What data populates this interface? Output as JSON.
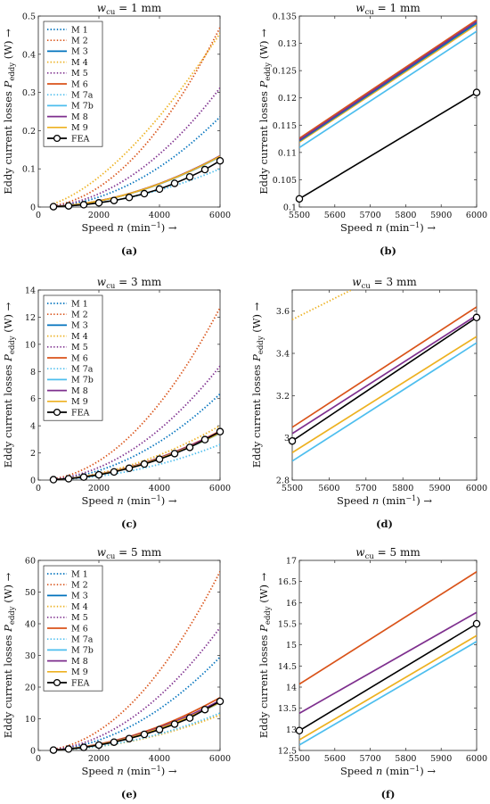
{
  "page": {
    "ylabel_left": "Eddy current losses P",
    "ylabel_sub": "eddy",
    "ylabel_unit": " (W)",
    "xlabel": "Speed n (min",
    "xlabel_sup": "−1",
    "xlabel_close": ")",
    "arrow": "→"
  },
  "colors": {
    "M 1": "#0072BD",
    "M 2": "#D95319",
    "M 3": "#0072BD",
    "M 4": "#EDB120",
    "M 5": "#7E2F8E",
    "M 6": "#D95319",
    "M 7a": "#4DBEEE",
    "M 7b": "#4DBEEE",
    "M 8": "#7E2F8E",
    "M 9": "#EDB120",
    "FEA": "#000000"
  },
  "styles": {
    "M 1": "dot",
    "M 2": "dot",
    "M 3": "solid",
    "M 4": "dot",
    "M 5": "dot",
    "M 6": "solid",
    "M 7a": "dot",
    "M 7b": "solid",
    "M 8": "solid",
    "M 9": "solid",
    "FEA": "circle"
  },
  "chart_data": [
    {
      "type": "line",
      "caption": "(a)",
      "title_main": "w",
      "title_sub": "cu",
      "title_rest": " = 1 mm",
      "xlim": [
        0,
        6000
      ],
      "ylim": [
        0,
        0.5
      ],
      "xticks": [
        0,
        2000,
        4000,
        6000
      ],
      "xtick_labels": [
        "0",
        "2000",
        "4000",
        "6000"
      ],
      "yticks": [
        0,
        0.1,
        0.2,
        0.3,
        0.4,
        0.5
      ],
      "ytick_labels": [
        "0",
        "0.1",
        "0.2",
        "0.3",
        "0.4",
        "0.5"
      ],
      "legend": [
        "M 1",
        "M 2",
        "M 3",
        "M 4",
        "M 5",
        "M 6",
        "M 7a",
        "M 7b",
        "M 8",
        "M 9",
        "FEA"
      ],
      "series": [
        {
          "name": "M 1",
          "x": [
            500,
            6000
          ],
          "y": [
            0.0016,
            0.236
          ],
          "exp": 2
        },
        {
          "name": "M 2",
          "x": [
            500,
            6000
          ],
          "y": [
            0.0032,
            0.47
          ],
          "exp": 2
        },
        {
          "name": "M 3",
          "x": [
            500,
            6000
          ],
          "y": [
            0.0011,
            0.132
          ],
          "exp": 1.93
        },
        {
          "name": "M 4",
          "x": [
            500,
            6000
          ],
          "y": [
            0.0085,
            0.455
          ],
          "exp": 1.6
        },
        {
          "name": "M 5",
          "x": [
            500,
            6000
          ],
          "y": [
            0.0022,
            0.312
          ],
          "exp": 2
        },
        {
          "name": "M 6",
          "x": [
            500,
            6000
          ],
          "y": [
            0.0011,
            0.134
          ],
          "exp": 1.93
        },
        {
          "name": "M 7a",
          "x": [
            500,
            6000
          ],
          "y": [
            0.0007,
            0.1
          ],
          "exp": 2
        },
        {
          "name": "M 7b",
          "x": [
            500,
            6000
          ],
          "y": [
            0.0011,
            0.132
          ],
          "exp": 1.93
        },
        {
          "name": "M 8",
          "x": [
            500,
            6000
          ],
          "y": [
            0.0011,
            0.134
          ],
          "exp": 1.93
        },
        {
          "name": "M 9",
          "x": [
            500,
            6000
          ],
          "y": [
            0.0011,
            0.133
          ],
          "exp": 1.93
        },
        {
          "name": "FEA",
          "x": [
            500,
            1000,
            1500,
            2000,
            2500,
            3000,
            3500,
            4000,
            4500,
            5000,
            5500,
            6000
          ],
          "y": [
            0.001,
            0.003,
            0.006,
            0.011,
            0.017,
            0.025,
            0.035,
            0.047,
            0.062,
            0.079,
            0.098,
            0.121
          ]
        }
      ]
    },
    {
      "type": "line",
      "caption": "(b)",
      "title_main": "w",
      "title_sub": "cu",
      "title_rest": " = 1 mm",
      "xlim": [
        5500,
        6000
      ],
      "ylim": [
        0.1,
        0.135
      ],
      "xticks": [
        5500,
        5600,
        5700,
        5800,
        5900,
        6000
      ],
      "xtick_labels": [
        "5500",
        "5600",
        "5700",
        "5800",
        "5900",
        "6000"
      ],
      "yticks": [
        0.1,
        0.105,
        0.11,
        0.115,
        0.12,
        0.125,
        0.13,
        0.135
      ],
      "ytick_labels": [
        "0.1",
        "0.105",
        "0.11",
        "0.115",
        "0.12",
        "0.125",
        "0.13",
        "0.135"
      ],
      "legend": [],
      "series": [
        {
          "name": "M 7b",
          "x": [
            5500,
            6000
          ],
          "y": [
            0.1109,
            0.1322
          ],
          "exp": 1
        },
        {
          "name": "M 9",
          "x": [
            5500,
            6000
          ],
          "y": [
            0.1119,
            0.1334
          ],
          "exp": 1
        },
        {
          "name": "M 3",
          "x": [
            5500,
            6000
          ],
          "y": [
            0.1121,
            0.1337
          ],
          "exp": 1
        },
        {
          "name": "M 6",
          "x": [
            5500,
            6000
          ],
          "y": [
            0.1126,
            0.1343
          ],
          "exp": 1
        },
        {
          "name": "M 8",
          "x": [
            5500,
            6000
          ],
          "y": [
            0.1123,
            0.134
          ],
          "exp": 1
        },
        {
          "name": "FEA",
          "x": [
            5500,
            6000
          ],
          "y": [
            0.1015,
            0.121
          ]
        }
      ]
    },
    {
      "type": "line",
      "caption": "(c)",
      "title_main": "w",
      "title_sub": "cu",
      "title_rest": " = 3 mm",
      "xlim": [
        0,
        6000
      ],
      "ylim": [
        0,
        14
      ],
      "xticks": [
        0,
        2000,
        4000,
        6000
      ],
      "xtick_labels": [
        "0",
        "2000",
        "4000",
        "6000"
      ],
      "yticks": [
        0,
        2,
        4,
        6,
        8,
        10,
        12,
        14
      ],
      "ytick_labels": [
        "0",
        "2",
        "4",
        "6",
        "8",
        "10",
        "12",
        "14"
      ],
      "legend": [
        "M 1",
        "M 2",
        "M 3",
        "M 4",
        "M 5",
        "M 6",
        "M 7a",
        "M 7b",
        "M 8",
        "M 9",
        "FEA"
      ],
      "series": [
        {
          "name": "M 1",
          "x": [
            500,
            6000
          ],
          "y": [
            0.044,
            6.35
          ],
          "exp": 2
        },
        {
          "name": "M 2",
          "x": [
            500,
            6000
          ],
          "y": [
            0.088,
            12.7
          ],
          "exp": 2
        },
        {
          "name": "M 3",
          "x": [
            500,
            6000
          ],
          "y": [
            0.03,
            3.58
          ],
          "exp": 1.93
        },
        {
          "name": "M 4",
          "x": [
            500,
            6000
          ],
          "y": [
            0.035,
            4.0
          ],
          "exp": 1.9
        },
        {
          "name": "M 5",
          "x": [
            500,
            6000
          ],
          "y": [
            0.058,
            8.4
          ],
          "exp": 2
        },
        {
          "name": "M 6",
          "x": [
            500,
            6000
          ],
          "y": [
            0.03,
            3.62
          ],
          "exp": 1.93
        },
        {
          "name": "M 7a",
          "x": [
            500,
            6000
          ],
          "y": [
            0.018,
            2.62
          ],
          "exp": 2
        },
        {
          "name": "M 7b",
          "x": [
            500,
            6000
          ],
          "y": [
            0.029,
            3.45
          ],
          "exp": 1.93
        },
        {
          "name": "M 8",
          "x": [
            500,
            6000
          ],
          "y": [
            0.03,
            3.58
          ],
          "exp": 1.93
        },
        {
          "name": "M 9",
          "x": [
            500,
            6000
          ],
          "y": [
            0.029,
            3.48
          ],
          "exp": 1.93
        },
        {
          "name": "FEA",
          "x": [
            500,
            1000,
            1500,
            2000,
            2500,
            3000,
            3500,
            4000,
            4500,
            5000,
            5500,
            6000
          ],
          "y": [
            0.03,
            0.1,
            0.22,
            0.39,
            0.6,
            0.87,
            1.18,
            1.54,
            1.95,
            2.41,
            2.98,
            3.57
          ]
        }
      ]
    },
    {
      "type": "line",
      "caption": "(d)",
      "title_main": "w",
      "title_sub": "cu",
      "title_rest": " = 3 mm",
      "xlim": [
        5500,
        6000
      ],
      "ylim": [
        2.8,
        3.7
      ],
      "xticks": [
        5500,
        5600,
        5700,
        5800,
        5900,
        6000
      ],
      "xtick_labels": [
        "5500",
        "5600",
        "5700",
        "5800",
        "5900",
        "6000"
      ],
      "yticks": [
        2.8,
        3.0,
        3.2,
        3.4,
        3.6
      ],
      "ytick_labels": [
        "2.8",
        "3",
        "3.2",
        "3.4",
        "3.6"
      ],
      "legend": [],
      "series": [
        {
          "name": "M 4",
          "x": [
            5500,
            5660
          ],
          "y": [
            3.56,
            3.7
          ],
          "exp": 1
        },
        {
          "name": "M 7b",
          "x": [
            5500,
            6000
          ],
          "y": [
            2.89,
            3.45
          ],
          "exp": 1
        },
        {
          "name": "M 9",
          "x": [
            5500,
            6000
          ],
          "y": [
            2.93,
            3.48
          ],
          "exp": 1
        },
        {
          "name": "M 6",
          "x": [
            5500,
            6000
          ],
          "y": [
            3.05,
            3.62
          ],
          "exp": 1
        },
        {
          "name": "M 8",
          "x": [
            5500,
            6000
          ],
          "y": [
            3.02,
            3.58
          ],
          "exp": 1
        },
        {
          "name": "FEA",
          "x": [
            5500,
            6000
          ],
          "y": [
            2.985,
            3.57
          ]
        }
      ]
    },
    {
      "type": "line",
      "caption": "(e)",
      "title_main": "w",
      "title_sub": "cu",
      "title_rest": " = 5 mm",
      "xlim": [
        0,
        6000
      ],
      "ylim": [
        0,
        60
      ],
      "xticks": [
        0,
        2000,
        4000,
        6000
      ],
      "xtick_labels": [
        "0",
        "2000",
        "4000",
        "6000"
      ],
      "yticks": [
        0,
        10,
        20,
        30,
        40,
        50,
        60
      ],
      "ytick_labels": [
        "0",
        "10",
        "20",
        "30",
        "40",
        "50",
        "60"
      ],
      "legend": [
        "M 1",
        "M 2",
        "M 3",
        "M 4",
        "M 5",
        "M 6",
        "M 7a",
        "M 7b",
        "M 8",
        "M 9",
        "FEA"
      ],
      "series": [
        {
          "name": "M 1",
          "x": [
            500,
            6000
          ],
          "y": [
            0.2,
            29.5
          ],
          "exp": 2
        },
        {
          "name": "M 2",
          "x": [
            500,
            6000
          ],
          "y": [
            0.4,
            56.5
          ],
          "exp": 2
        },
        {
          "name": "M 3",
          "x": [
            500,
            6000
          ],
          "y": [
            0.13,
            15.6
          ],
          "exp": 1.93
        },
        {
          "name": "M 4",
          "x": [
            500,
            6000
          ],
          "y": [
            0.08,
            11.2
          ],
          "exp": 2
        },
        {
          "name": "M 5",
          "x": [
            500,
            6000
          ],
          "y": [
            0.27,
            38.8
          ],
          "exp": 2
        },
        {
          "name": "M 6",
          "x": [
            500,
            6000
          ],
          "y": [
            0.14,
            16.7
          ],
          "exp": 1.93
        },
        {
          "name": "M 7a",
          "x": [
            500,
            6000
          ],
          "y": [
            0.08,
            11.8
          ],
          "exp": 2
        },
        {
          "name": "M 7b",
          "x": [
            500,
            6000
          ],
          "y": [
            0.12,
            15.1
          ],
          "exp": 1.93
        },
        {
          "name": "M 8",
          "x": [
            500,
            6000
          ],
          "y": [
            0.13,
            15.8
          ],
          "exp": 1.93
        },
        {
          "name": "M 9",
          "x": [
            500,
            6000
          ],
          "y": [
            0.12,
            15.2
          ],
          "exp": 1.93
        },
        {
          "name": "FEA",
          "x": [
            500,
            1000,
            1500,
            2000,
            2500,
            3000,
            3500,
            4000,
            4500,
            5000,
            5500,
            6000
          ],
          "y": [
            0.12,
            0.45,
            0.97,
            1.7,
            2.62,
            3.75,
            5.07,
            6.6,
            8.32,
            10.25,
            12.9,
            15.5
          ]
        }
      ]
    },
    {
      "type": "line",
      "caption": "(f)",
      "title_main": "w",
      "title_sub": "cu",
      "title_rest": " = 5 mm",
      "xlim": [
        5500,
        6000
      ],
      "ylim": [
        12.5,
        17
      ],
      "xticks": [
        5500,
        5600,
        5700,
        5800,
        5900,
        6000
      ],
      "xtick_labels": [
        "5500",
        "5600",
        "5700",
        "5800",
        "5900",
        "6000"
      ],
      "yticks": [
        12.5,
        13,
        13.5,
        14,
        14.5,
        15,
        15.5,
        16,
        16.5,
        17
      ],
      "ytick_labels": [
        "12.5",
        "13",
        "13.5",
        "14",
        "14.5",
        "15",
        "15.5",
        "16",
        "16.5",
        "17"
      ],
      "legend": [],
      "series": [
        {
          "name": "M 7b",
          "x": [
            5500,
            6000
          ],
          "y": [
            12.63,
            15.08
          ],
          "exp": 1
        },
        {
          "name": "M 9",
          "x": [
            5500,
            6000
          ],
          "y": [
            12.75,
            15.22
          ],
          "exp": 1
        },
        {
          "name": "M 6",
          "x": [
            5500,
            6000
          ],
          "y": [
            14.07,
            16.73
          ],
          "exp": 1
        },
        {
          "name": "M 8",
          "x": [
            5500,
            6000
          ],
          "y": [
            13.38,
            15.77
          ],
          "exp": 1
        },
        {
          "name": "FEA",
          "x": [
            5500,
            6000
          ],
          "y": [
            12.97,
            15.5
          ]
        }
      ]
    }
  ]
}
